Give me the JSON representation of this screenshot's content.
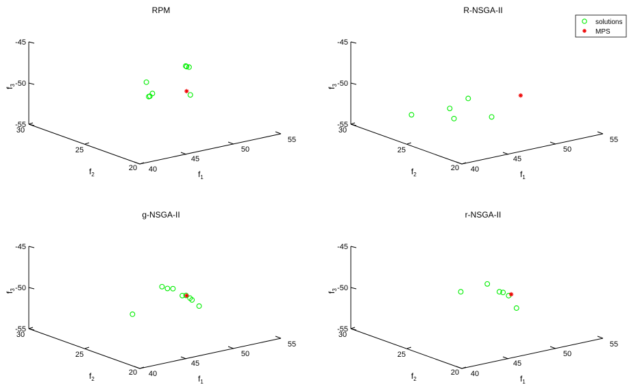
{
  "colors": {
    "solutions": "#00ee00",
    "mps": "#ee0000",
    "axis": "#000000",
    "background": "#ffffff"
  },
  "legend": {
    "placement": "top-right",
    "entries": [
      "solutions",
      "MPS"
    ]
  },
  "chart_data": [
    {
      "type": "scatter3d",
      "title": "RPM",
      "axes": {
        "x": {
          "label": "f",
          "subscript": "1",
          "lim": [
            40,
            55
          ],
          "ticks": [
            "40",
            "45",
            "50",
            "55"
          ]
        },
        "y": {
          "label": "f",
          "subscript": "2",
          "lim": [
            20,
            30
          ],
          "ticks": [
            "20",
            "25",
            "30"
          ]
        },
        "z": {
          "label": "f",
          "subscript": "3",
          "lim": [
            -55,
            -45
          ],
          "ticks": [
            "-45",
            "-50",
            "-55"
          ]
        }
      },
      "series": [
        {
          "name": "solutions",
          "marker": "circle",
          "points": [
            [
              45.3,
              24.0,
              -48.2
            ],
            [
              46.0,
              24.0,
              -49.8
            ],
            [
              46.1,
              24.3,
              -50.3
            ],
            [
              46.1,
              24.4,
              -50.4
            ],
            [
              50.5,
              24.8,
              -48.1
            ],
            [
              50.6,
              24.8,
              -48.2
            ],
            [
              50.5,
              24.5,
              -48.1
            ],
            [
              49.4,
              23.4,
              -50.7
            ]
          ]
        },
        {
          "name": "MPS",
          "marker": "asterisk",
          "points": [
            [
              49.1,
              23.5,
              -50.2
            ]
          ]
        }
      ]
    },
    {
      "type": "scatter3d",
      "title": "R-NSGA-II",
      "axes": {
        "x": {
          "label": "f",
          "subscript": "1",
          "lim": [
            40,
            55
          ],
          "ticks": [
            "40",
            "45",
            "50",
            "55"
          ]
        },
        "y": {
          "label": "f",
          "subscript": "2",
          "lim": [
            20,
            30
          ],
          "ticks": [
            "20",
            "25",
            "30"
          ]
        },
        "z": {
          "label": "f",
          "subscript": "3",
          "lim": [
            -55,
            -45
          ],
          "ticks": [
            "-45",
            "-50",
            "-55"
          ]
        }
      },
      "series": [
        {
          "name": "solutions",
          "marker": "circle",
          "points": [
            [
              43.5,
              27.5,
              -53.3
            ],
            [
              45.2,
              25.5,
              -52.1
            ],
            [
              45.7,
              25.5,
              -53.5
            ],
            [
              46.8,
              25.2,
              -51.2
            ],
            [
              47.1,
              23.3,
              -52.7
            ]
          ]
        },
        {
          "name": "MPS",
          "marker": "asterisk",
          "points": [
            [
              49.2,
              22.5,
              -50.3
            ]
          ]
        }
      ]
    },
    {
      "type": "scatter3d",
      "title": "g-NSGA-II",
      "axes": {
        "x": {
          "label": "f",
          "subscript": "1",
          "lim": [
            40,
            55
          ],
          "ticks": [
            "40",
            "45",
            "50",
            "55"
          ]
        },
        "y": {
          "label": "f",
          "subscript": "2",
          "lim": [
            20,
            30
          ],
          "ticks": [
            "20",
            "25",
            "30"
          ]
        },
        "z": {
          "label": "f",
          "subscript": "3",
          "lim": [
            -55,
            -45
          ],
          "ticks": [
            "-45",
            "-50",
            "-55"
          ]
        }
      },
      "series": [
        {
          "name": "solutions",
          "marker": "circle",
          "points": [
            [
              44.5,
              24.5,
              -51.6
            ],
            [
              47.0,
              24.0,
              -48.7
            ],
            [
              47.6,
              24.0,
              -49.1
            ],
            [
              48.2,
              24.0,
              -49.3
            ],
            [
              49.0,
              23.8,
              -50.3
            ],
            [
              49.4,
              23.8,
              -50.4
            ],
            [
              49.6,
              23.6,
              -50.7
            ],
            [
              49.7,
              23.5,
              -50.9
            ],
            [
              50.5,
              23.5,
              -51.9
            ]
          ]
        },
        {
          "name": "MPS",
          "marker": "asterisk",
          "points": [
            [
              49.1,
              23.5,
              -50.2
            ]
          ]
        }
      ]
    },
    {
      "type": "scatter3d",
      "title": "r-NSGA-II",
      "axes": {
        "x": {
          "label": "f",
          "subscript": "1",
          "lim": [
            40,
            55
          ],
          "ticks": [
            "40",
            "45",
            "50",
            "55"
          ]
        },
        "y": {
          "label": "f",
          "subscript": "2",
          "lim": [
            20,
            30
          ],
          "ticks": [
            "20",
            "25",
            "30"
          ]
        },
        "z": {
          "label": "f",
          "subscript": "3",
          "lim": [
            -55,
            -45
          ],
          "ticks": [
            "-45",
            "-50",
            "-55"
          ]
        }
      },
      "series": [
        {
          "name": "solutions",
          "marker": "circle",
          "points": [
            [
              45.1,
              24.5,
              -49.0
            ],
            [
              47.1,
              23.8,
              -48.3
            ],
            [
              48.2,
              23.6,
              -49.5
            ],
            [
              48.6,
              23.6,
              -49.7
            ],
            [
              49.1,
              23.5,
              -50.2
            ],
            [
              50.0,
              23.5,
              -52.0
            ]
          ]
        },
        {
          "name": "MPS",
          "marker": "asterisk",
          "points": [
            [
              49.5,
              23.6,
              -50.2
            ]
          ]
        }
      ]
    }
  ]
}
